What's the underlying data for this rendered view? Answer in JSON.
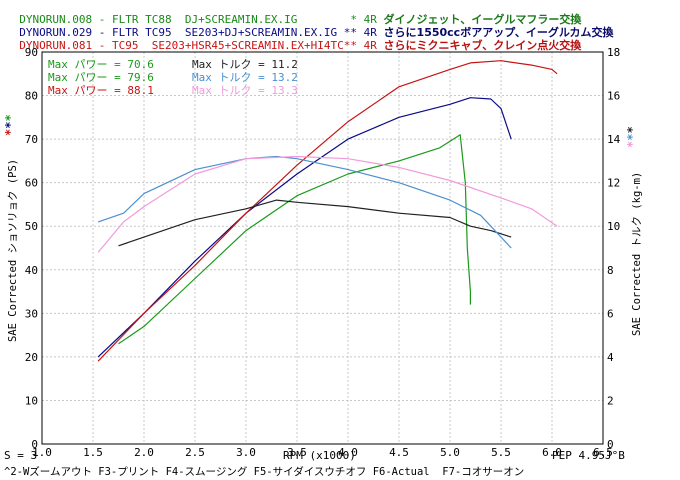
{
  "header_lines": [
    {
      "run": "DYNORUN.008",
      "model": "FLTR TC88",
      "mods": "DJ+SCREAMIN.EX.IG",
      "marker": "*",
      "gear": "4R",
      "desc": "ダイノジェット、イーグルマフラー交換",
      "color": "#1a8a1a"
    },
    {
      "run": "DYNORUN.029",
      "model": "FLTR TC95",
      "mods": "SE203+DJ+SCREAMIN.EX.IG",
      "marker": "**",
      "gear": "4R",
      "desc": "さらに1550ccボアアップ、イーグルカム交換",
      "color": "#0a0a8a"
    },
    {
      "run": "DYNORUN.081",
      "model": "TC95",
      "mods": "SE203+HSR45+SCREAMIN.EX+HI4TC",
      "marker": "**",
      "gear": "4R",
      "desc": "さらにミクニキャブ、クレイン点火交換",
      "color": "#c81414"
    }
  ],
  "legend": [
    {
      "label": "Max パワー =",
      "value": "70.6",
      "color": "#1a9a1a",
      "tlabel": "Max トルク =",
      "tvalue": "11.2",
      "tcolor": "#222222"
    },
    {
      "label": "Max パワー =",
      "value": "79.6",
      "color": "#1a9a1a",
      "tlabel": "Max トルク =",
      "tvalue": "13.2",
      "tcolor": "#4a90d0"
    },
    {
      "label": "Max パワー =",
      "value": "88.1",
      "color": "#c81414",
      "tlabel": "Max トルク =",
      "tvalue": "13.3",
      "tcolor": "#f09adc"
    }
  ],
  "axis_markers": {
    "left": "***",
    "right": "***"
  },
  "footer": {
    "s_label": "S = 3",
    "rpm_label": "RPM (x1000)",
    "pep": "PEP 4.95J°B",
    "fkeys": "^2-Wズームアウト F3-プリント F4-スムージング F5-サイダイスウチオフ F6-Actual  F7-コオサーオン"
  },
  "chart_data": {
    "type": "line",
    "xlabel": "RPM (x1000)",
    "ylabel_left": "SAE Corrected ショソリョク (PS)",
    "ylabel_right": "SAE Corrected トルク (kg-m)",
    "xlim": [
      1.0,
      6.5
    ],
    "ylim_left": [
      0,
      90
    ],
    "ylim_right": [
      0,
      18
    ],
    "x_ticks": [
      "1.0",
      "1.5",
      "2.0",
      "2.5",
      "3.0",
      "3.5",
      "4.0",
      "4.5",
      "5.0",
      "5.5",
      "6.0",
      "6.5"
    ],
    "y_left_ticks": [
      "0",
      "10",
      "20",
      "30",
      "40",
      "50",
      "60",
      "70",
      "80",
      "90"
    ],
    "y_right_ticks": [
      "0",
      "2",
      "4",
      "6",
      "8",
      "10",
      "12",
      "14",
      "16",
      "18"
    ],
    "grid": true,
    "series": [
      {
        "name": "DYNORUN.008",
        "kind": "power",
        "axis": "left",
        "color": "#1a9a1a",
        "x": [
          1.75,
          2.0,
          2.5,
          3.0,
          3.5,
          4.0,
          4.5,
          4.9,
          5.1,
          5.15,
          5.17,
          5.2,
          5.2
        ],
        "y": [
          23,
          27,
          38,
          49,
          57,
          62,
          65,
          68,
          71,
          60,
          45,
          35,
          32
        ]
      },
      {
        "name": "DYNORUN.029",
        "kind": "power",
        "axis": "left",
        "color": "#0a0a8a",
        "x": [
          1.55,
          2.0,
          2.5,
          3.0,
          3.5,
          4.0,
          4.5,
          5.0,
          5.2,
          5.4,
          5.5,
          5.6
        ],
        "y": [
          20,
          30,
          42,
          53,
          62,
          70,
          75,
          78,
          79.5,
          79.2,
          77,
          70
        ]
      },
      {
        "name": "DYNORUN.081",
        "kind": "power",
        "axis": "left",
        "color": "#c81414",
        "x": [
          1.55,
          2.0,
          2.5,
          3.0,
          3.5,
          4.0,
          4.5,
          5.0,
          5.2,
          5.5,
          5.8,
          6.0,
          6.05
        ],
        "y": [
          19,
          30,
          41,
          53,
          64,
          74,
          82,
          86,
          87.5,
          88,
          87,
          86,
          85
        ]
      },
      {
        "name": "DYNORUN.008",
        "kind": "torque",
        "axis": "right",
        "color": "#222222",
        "x": [
          1.75,
          2.0,
          2.5,
          3.0,
          3.3,
          3.5,
          4.0,
          4.5,
          5.0,
          5.2,
          5.4,
          5.6
        ],
        "y": [
          9.1,
          9.5,
          10.3,
          10.8,
          11.2,
          11.1,
          10.9,
          10.6,
          10.4,
          10.0,
          9.8,
          9.5
        ]
      },
      {
        "name": "DYNORUN.029",
        "kind": "torque",
        "axis": "right",
        "color": "#4a90d0",
        "x": [
          1.55,
          1.8,
          2.0,
          2.5,
          3.0,
          3.3,
          3.5,
          4.0,
          4.5,
          5.0,
          5.3,
          5.6
        ],
        "y": [
          10.2,
          10.6,
          11.5,
          12.6,
          13.1,
          13.2,
          13.1,
          12.6,
          12.0,
          11.2,
          10.5,
          9.0
        ]
      },
      {
        "name": "DYNORUN.081",
        "kind": "torque",
        "axis": "right",
        "color": "#f09adc",
        "x": [
          1.55,
          1.8,
          2.0,
          2.5,
          3.0,
          3.5,
          4.0,
          4.5,
          5.0,
          5.5,
          5.8,
          6.05
        ],
        "y": [
          8.8,
          10.2,
          10.9,
          12.4,
          13.1,
          13.2,
          13.1,
          12.7,
          12.1,
          11.3,
          10.8,
          10.0
        ]
      }
    ]
  }
}
